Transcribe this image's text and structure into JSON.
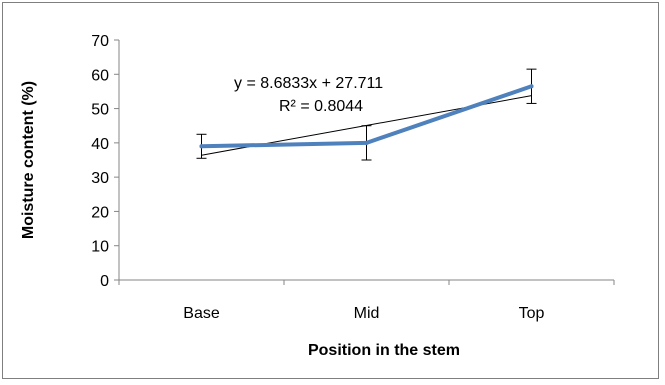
{
  "chart_data": {
    "type": "line",
    "categories": [
      "Base",
      "Mid",
      "Top"
    ],
    "series": [
      {
        "values": [
          39,
          40,
          56.5
        ],
        "error": [
          3.5,
          5,
          5
        ],
        "color": "#4f81bd"
      }
    ],
    "trendline": {
      "type": "linear",
      "slope": 8.6833,
      "intercept": 27.711,
      "equation_text": "y = 8.6833x + 27.711",
      "r2_text": "R² = 0.8044",
      "color": "#000000"
    },
    "xlabel": "Position in the stem",
    "ylabel": "Moisture content (%)",
    "ylim": [
      0,
      70
    ],
    "yticks": [
      0,
      10,
      20,
      30,
      40,
      50,
      60,
      70
    ],
    "grid": false,
    "legend": "none"
  }
}
